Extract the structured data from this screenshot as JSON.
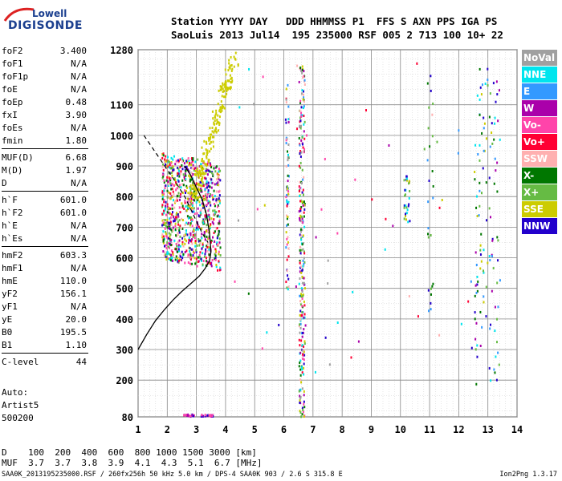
{
  "logo": {
    "line1": "Lowell",
    "line2": "DIGISONDE"
  },
  "header": {
    "line1": "Station YYYY DAY   DDD HHMMSS P1  FFS S AXN PPS IGA PS",
    "line2": "SaoLuis 2013 Jul14  195 235000 RSF 005 2 713 100 10+ 22"
  },
  "params": [
    {
      "key": "foF2",
      "value": "3.400"
    },
    {
      "key": "foF1",
      "value": "N/A"
    },
    {
      "key": "foF1p",
      "value": "N/A"
    },
    {
      "key": "foE",
      "value": "N/A"
    },
    {
      "key": "foEp",
      "value": "0.48"
    },
    {
      "key": "fxI",
      "value": "3.90"
    },
    {
      "key": "foEs",
      "value": "N/A"
    },
    {
      "key": "fmin",
      "value": "1.80"
    },
    {
      "key": "MUF(D)",
      "value": "6.68"
    },
    {
      "key": "M(D)",
      "value": "1.97"
    },
    {
      "key": "D",
      "value": "N/A"
    },
    {
      "key": "h`F",
      "value": "601.0"
    },
    {
      "key": "h`F2",
      "value": "601.0"
    },
    {
      "key": "h`E",
      "value": "N/A"
    },
    {
      "key": "h`Es",
      "value": "N/A"
    },
    {
      "key": "hmF2",
      "value": "603.3"
    },
    {
      "key": "hmF1",
      "value": "N/A"
    },
    {
      "key": "hmE",
      "value": "110.0"
    },
    {
      "key": "yF2",
      "value": "156.1"
    },
    {
      "key": "yF1",
      "value": "N/A"
    },
    {
      "key": "yE",
      "value": "20.0"
    },
    {
      "key": "B0",
      "value": "195.5"
    },
    {
      "key": "B1",
      "value": "1.10"
    },
    {
      "key": "C-level",
      "value": "44"
    }
  ],
  "auto": {
    "line1": "Auto:",
    "line2": "Artist5",
    "line3": "500200"
  },
  "legend": [
    {
      "label": "NoVal",
      "color": "#a0a0a0"
    },
    {
      "label": "NNE",
      "color": "#00e5ee"
    },
    {
      "label": "E",
      "color": "#3399ff"
    },
    {
      "label": "W",
      "color": "#aa00aa"
    },
    {
      "label": "Vo-",
      "color": "#ff44aa"
    },
    {
      "label": "Vo+",
      "color": "#ff0033"
    },
    {
      "label": "SSW",
      "color": "#ffb0b0"
    },
    {
      "label": "X-",
      "color": "#007700"
    },
    {
      "label": "X+",
      "color": "#66bb44"
    },
    {
      "label": "SSE",
      "color": "#cccc00"
    },
    {
      "label": "NNW",
      "color": "#2200cc"
    }
  ],
  "dtable": {
    "row1_label": "D",
    "row1_values": "100  200  400  600  800 1000 1500 3000 [km]",
    "row2_label": "MUF",
    "row2_values": "3.7  3.7  3.8  3.9  4.1  4.3  5.1  6.7 [MHz]"
  },
  "footer": {
    "text": "SAA0K_2013195235000.RSF / 260fx256h 50 kHz 5.0 km / DPS-4 SAA0K 903 / 2.6 S 315.8 E",
    "version": "Ion2Png 1.3.17"
  },
  "chart_data": {
    "type": "scatter",
    "title": "",
    "xlabel": "",
    "ylabel": "",
    "xlim": [
      1,
      14
    ],
    "ylim": [
      80,
      1280
    ],
    "x_ticks": [
      1,
      2,
      3,
      4,
      5,
      6,
      7,
      8,
      9,
      10,
      11,
      12,
      13,
      14
    ],
    "y_ticks": [
      80,
      200,
      300,
      400,
      500,
      600,
      700,
      800,
      900,
      1000,
      1100,
      1280
    ],
    "grid": true,
    "legend_position": "right",
    "profile_curve": {
      "x": [
        1.0,
        1.3,
        1.6,
        1.9,
        2.2,
        2.5,
        2.8,
        3.1,
        3.3,
        3.45,
        3.5
      ],
      "y": [
        300,
        350,
        395,
        430,
        462,
        490,
        515,
        540,
        565,
        590,
        620
      ]
    },
    "trace_curve": {
      "x": [
        3.5,
        3.45,
        3.35,
        3.2,
        3.0,
        2.8,
        2.6
      ],
      "y": [
        620,
        680,
        740,
        790,
        830,
        870,
        900
      ]
    },
    "dashed_line": {
      "x": [
        1.2,
        2.2,
        2.6,
        3.0,
        3.2,
        3.4
      ],
      "y": [
        1000,
        860,
        800,
        720,
        680,
        650
      ]
    }
  }
}
